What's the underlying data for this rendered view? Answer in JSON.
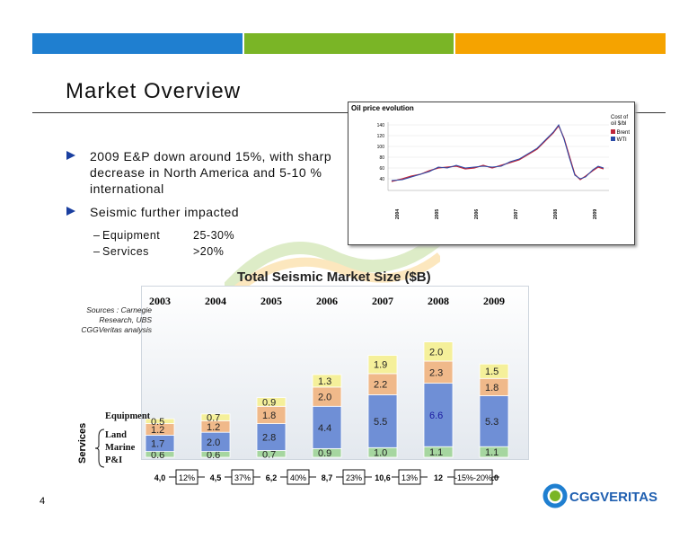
{
  "header_bars": [
    {
      "color": "#1f7fd0"
    },
    {
      "color": "#7ab526"
    },
    {
      "color": "#f5a300"
    }
  ],
  "title": "Market Overview",
  "bullets": [
    {
      "text": "2009 E&P down around 15%, with sharp decrease in North America and 5-10 % international"
    },
    {
      "text": "Seismic further impacted"
    }
  ],
  "sub_bullets": [
    {
      "dash": "–",
      "label": "Equipment",
      "value": "25-30%"
    },
    {
      "dash": "–",
      "label": "Services",
      "value": ">20%"
    }
  ],
  "oil_chart": {
    "title": "Oil price evolution",
    "legend_title": "Cost of oil $/bl",
    "legend": [
      "Brent",
      "WTI"
    ],
    "y_ticks": [
      "140",
      "120",
      "100",
      "80",
      "60",
      "40"
    ],
    "years": [
      "2004",
      "2005",
      "2006",
      "2007",
      "2008",
      "2009"
    ]
  },
  "chart_data": {
    "type": "bar",
    "title": "Total Seismic Market Size ($B)",
    "categories": [
      "2003",
      "2004",
      "2005",
      "2006",
      "2007",
      "2008",
      "2009"
    ],
    "series": [
      {
        "name": "P&I",
        "values": [
          0.6,
          0.6,
          0.7,
          0.9,
          1.0,
          1.1,
          1.1
        ]
      },
      {
        "name": "Land",
        "values": [
          1.7,
          2.0,
          2.8,
          4.4,
          5.5,
          6.6,
          5.3
        ]
      },
      {
        "name": "Marine",
        "values": [
          1.2,
          1.2,
          1.8,
          2.0,
          2.2,
          2.3,
          1.8
        ]
      },
      {
        "name": "Equipment",
        "values": [
          0.5,
          0.7,
          0.9,
          1.3,
          1.9,
          2.0,
          1.5
        ]
      }
    ],
    "series_colors": [
      "#a6d6a0",
      "#6f8fd6",
      "#f0b98a",
      "#f5f09a"
    ],
    "totals": [
      "4,0",
      "4,5",
      "6,2",
      "8,7",
      "10,6",
      "12",
      "10"
    ],
    "growth": [
      "12%",
      "37%",
      "40%",
      "23%",
      "13%",
      "-15%-20%"
    ]
  },
  "sources": "Sources : Carnegie Research, UBS CGGVeritas analysis",
  "legend_labels": {
    "equipment": "Equipment",
    "land": "Land",
    "marine": "Marine",
    "pi": "P&I",
    "services": "Services"
  },
  "page_number": "4",
  "logo_text": "CGGVERITAS"
}
